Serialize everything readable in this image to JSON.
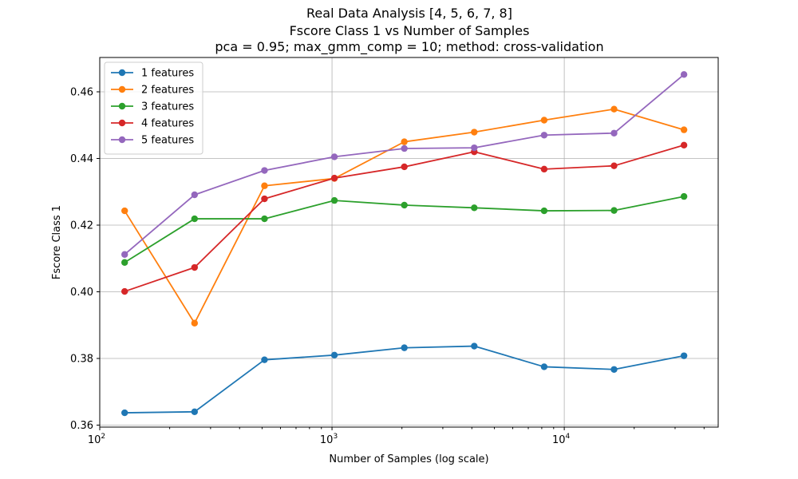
{
  "chart_data": {
    "type": "line",
    "title_lines": [
      "Real Data Analysis [4, 5, 6, 7, 8]",
      "Fscore Class 1 vs Number of Samples",
      "pca = 0.95; max_gmm_comp = 10; method: cross-validation"
    ],
    "xlabel": "Number of Samples (log scale)",
    "ylabel": "Fscore Class 1",
    "xscale": "log",
    "xlim": [
      100,
      46000
    ],
    "ylim": [
      0.3594,
      0.4703
    ],
    "grid": true,
    "legend_position": "top-left",
    "x_ticks": [
      {
        "base": "10",
        "exp": "2",
        "value": 100
      },
      {
        "base": "10",
        "exp": "3",
        "value": 1000
      },
      {
        "base": "10",
        "exp": "4",
        "value": 10000
      }
    ],
    "y_ticks": [
      {
        "label": "0.36",
        "value": 0.36
      },
      {
        "label": "0.38",
        "value": 0.38
      },
      {
        "label": "0.40",
        "value": 0.4
      },
      {
        "label": "0.42",
        "value": 0.42
      },
      {
        "label": "0.44",
        "value": 0.44
      },
      {
        "label": "0.46",
        "value": 0.46
      }
    ],
    "x": [
      128,
      256,
      512,
      1024,
      2048,
      4096,
      8192,
      16384,
      32768
    ],
    "series": [
      {
        "name": "1 features",
        "color": "#1f77b4",
        "values": [
          0.3637,
          0.364,
          0.3796,
          0.381,
          0.3832,
          0.3837,
          0.3775,
          0.3767,
          0.3808
        ]
      },
      {
        "name": "2 features",
        "color": "#ff7f0e",
        "values": [
          0.4243,
          0.3906,
          0.4318,
          0.434,
          0.445,
          0.4479,
          0.4515,
          0.4548,
          0.4486
        ]
      },
      {
        "name": "3 features",
        "color": "#2ca02c",
        "values": [
          0.4088,
          0.4219,
          0.4219,
          0.4274,
          0.426,
          0.4252,
          0.4243,
          0.4244,
          0.4286
        ]
      },
      {
        "name": "4 features",
        "color": "#d62728",
        "values": [
          0.4001,
          0.4073,
          0.4279,
          0.4341,
          0.4375,
          0.442,
          0.4368,
          0.4378,
          0.444
        ]
      },
      {
        "name": "5 features",
        "color": "#9467bd",
        "values": [
          0.4112,
          0.4291,
          0.4364,
          0.4405,
          0.443,
          0.4432,
          0.447,
          0.4476,
          0.4652
        ]
      }
    ]
  }
}
